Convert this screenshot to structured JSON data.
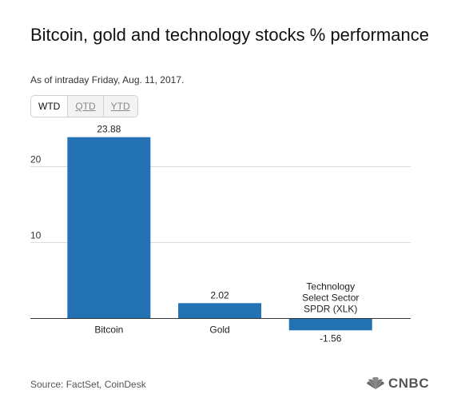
{
  "header": {
    "title": "Bitcoin, gold and technology stocks % performance",
    "subtitle": "As of intraday Friday, Aug. 11, 2017."
  },
  "tabs": [
    {
      "label": "WTD",
      "active": true
    },
    {
      "label": "QTD",
      "active": false
    },
    {
      "label": "YTD",
      "active": false
    }
  ],
  "chart_data": {
    "type": "bar",
    "categories": [
      "Bitcoin",
      "Gold",
      "Technology Select Sector SPDR (XLK)"
    ],
    "category_label_lines": [
      [
        "Bitcoin"
      ],
      [
        "Gold"
      ],
      [
        "Technology",
        "Select Sector",
        "SPDR (XLK)"
      ]
    ],
    "values": [
      23.88,
      2.02,
      -1.56
    ],
    "value_labels": [
      "23.88",
      "2.02",
      "-1.56"
    ],
    "y_ticks": [
      10,
      20
    ],
    "y_tick_labels": [
      "10",
      "20"
    ],
    "ylim": [
      -1.56,
      24
    ],
    "grid": true,
    "bar_color": "#2272b4"
  },
  "footer": {
    "source": "Source: FactSet, CoinDesk",
    "logo": "CNBC"
  },
  "colors": {
    "bar": "#2272b4",
    "grid": "#dcdcdc",
    "baseline": "#333333"
  }
}
